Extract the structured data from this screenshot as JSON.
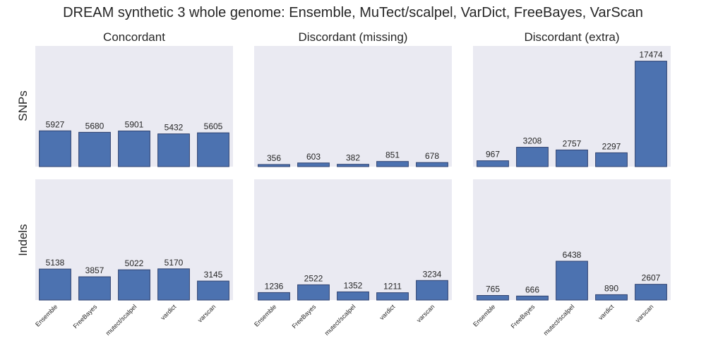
{
  "title": "DREAM synthetic 3 whole genome: Ensemble, MuTect/scalpel, VarDict, FreeBayes, VarScan",
  "columns": [
    "Concordant",
    "Discordant (missing)",
    "Discordant (extra)"
  ],
  "rows": [
    "SNPs",
    "Indels"
  ],
  "colors": {
    "bar": "#4c72b0",
    "bar_edge": "#2f4270",
    "panel": "#eaeaf2"
  },
  "chart_data": {
    "type": "bar",
    "layout": "grid 2x3",
    "categories": [
      "Ensemble",
      "FreeBayes",
      "mutect/scalpel",
      "vardict",
      "varscan"
    ],
    "ylim": [
      0,
      20000
    ],
    "grid": false,
    "panels": [
      {
        "row": "SNPs",
        "column": "Concordant",
        "values": [
          5927,
          5680,
          5901,
          5432,
          5605
        ]
      },
      {
        "row": "SNPs",
        "column": "Discordant (missing)",
        "values": [
          356,
          603,
          382,
          851,
          678
        ]
      },
      {
        "row": "SNPs",
        "column": "Discordant (extra)",
        "values": [
          967,
          3208,
          2757,
          2297,
          17474
        ]
      },
      {
        "row": "Indels",
        "column": "Concordant",
        "values": [
          5138,
          3857,
          5022,
          5170,
          3145
        ]
      },
      {
        "row": "Indels",
        "column": "Discordant (missing)",
        "values": [
          1236,
          2522,
          1352,
          1211,
          3234
        ]
      },
      {
        "row": "Indels",
        "column": "Discordant (extra)",
        "values": [
          765,
          666,
          6438,
          890,
          2607
        ]
      }
    ]
  }
}
